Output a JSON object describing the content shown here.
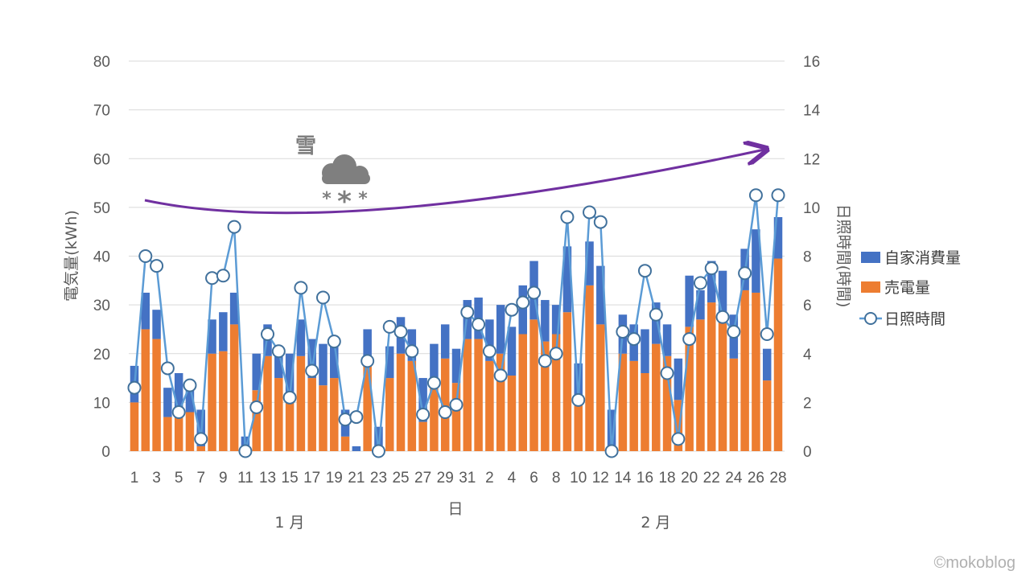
{
  "chart_data": {
    "type": "bar",
    "stacked": true,
    "xlabel": "日",
    "ylabel": "電気量(kWh)",
    "y2label": "日照時間(時間)",
    "ylim": [
      0,
      80
    ],
    "yticks": [
      0,
      10,
      20,
      30,
      40,
      50,
      60,
      70,
      80
    ],
    "y2lim": [
      0,
      16
    ],
    "y2ticks": [
      0,
      2,
      4,
      6,
      8,
      10,
      12,
      14,
      16
    ],
    "grid": true,
    "legend_position": "right",
    "month_labels": [
      "1 月",
      "2 月"
    ],
    "annotation": "雪",
    "categories": [
      "1/1",
      "1/2",
      "1/3",
      "1/4",
      "1/5",
      "1/6",
      "1/7",
      "1/8",
      "1/9",
      "1/10",
      "1/11",
      "1/12",
      "1/13",
      "1/14",
      "1/15",
      "1/16",
      "1/17",
      "1/18",
      "1/19",
      "1/20",
      "1/21",
      "1/22",
      "1/23",
      "1/24",
      "1/25",
      "1/26",
      "1/27",
      "1/28",
      "1/29",
      "1/30",
      "1/31",
      "2/1",
      "2/2",
      "2/3",
      "2/4",
      "2/5",
      "2/6",
      "2/7",
      "2/8",
      "2/9",
      "2/10",
      "2/11",
      "2/12",
      "2/13",
      "2/14",
      "2/15",
      "2/16",
      "2/17",
      "2/18",
      "2/19",
      "2/20",
      "2/21",
      "2/22",
      "2/23",
      "2/24",
      "2/25",
      "2/26",
      "2/27",
      "2/28"
    ],
    "day_tick_labels": [
      "1",
      "3",
      "5",
      "7",
      "9",
      "11",
      "13",
      "15",
      "17",
      "19",
      "21",
      "23",
      "25",
      "27",
      "29",
      "31",
      "2",
      "4",
      "6",
      "8",
      "10",
      "12",
      "14",
      "16",
      "18",
      "20",
      "22",
      "24",
      "26",
      "28"
    ],
    "series": [
      {
        "name": "自家消費量",
        "type": "bar",
        "axis": "left",
        "color": "#4472C4",
        "values": [
          7.5,
          7.5,
          6,
          6,
          8.5,
          5,
          7.5,
          7,
          8,
          6.5,
          2.5,
          7.5,
          6.5,
          5,
          9,
          7.5,
          8,
          8.5,
          7,
          5.5,
          1,
          7.5,
          5,
          6.5,
          7.5,
          6.5,
          9,
          9,
          7,
          7,
          8,
          8.5,
          8.5,
          10,
          10,
          10,
          12,
          8.5,
          6,
          13.5,
          8,
          9,
          12,
          7.5,
          8,
          7.5,
          9,
          8.5,
          6.5,
          8.5,
          10.5,
          6,
          8.5,
          9,
          9,
          8.5,
          13,
          6.5,
          8.5
        ]
      },
      {
        "name": "売電量",
        "type": "bar",
        "axis": "left",
        "color": "#ED7D31",
        "values": [
          10,
          25,
          23,
          7,
          7.5,
          8,
          1,
          20,
          20.5,
          26,
          0.5,
          12.5,
          19.5,
          15,
          11,
          19.5,
          15,
          13.5,
          15,
          3,
          0,
          17.5,
          0,
          15,
          20,
          18.5,
          6,
          13,
          19,
          14,
          23,
          23,
          18.5,
          20,
          15.5,
          24,
          27,
          22.5,
          24,
          28.5,
          10,
          34,
          26,
          1,
          20,
          18.5,
          16,
          22,
          19.5,
          10.5,
          25.5,
          27,
          30.5,
          28,
          19,
          33,
          32.5,
          14.5,
          39.5
        ]
      },
      {
        "name": "日照時間",
        "type": "line",
        "axis": "right",
        "color": "#5B9BD5",
        "values": [
          2.6,
          8.0,
          7.6,
          3.4,
          1.6,
          2.7,
          0.5,
          7.1,
          7.2,
          9.2,
          0,
          1.8,
          4.8,
          4.1,
          2.2,
          6.7,
          3.3,
          6.3,
          4.5,
          1.3,
          1.4,
          3.7,
          0,
          5.1,
          4.9,
          4.1,
          1.5,
          2.8,
          1.6,
          1.9,
          5.7,
          5.2,
          4.1,
          3.1,
          5.8,
          6.1,
          6.5,
          3.7,
          4.0,
          9.6,
          2.1,
          9.8,
          9.4,
          0,
          4.9,
          4.6,
          7.4,
          5.6,
          3.2,
          0.5,
          4.6,
          6.9,
          7.5,
          5.5,
          4.9,
          7.3,
          10.5,
          4.8,
          10.5
        ]
      }
    ]
  },
  "watermark": "©mokoblog"
}
